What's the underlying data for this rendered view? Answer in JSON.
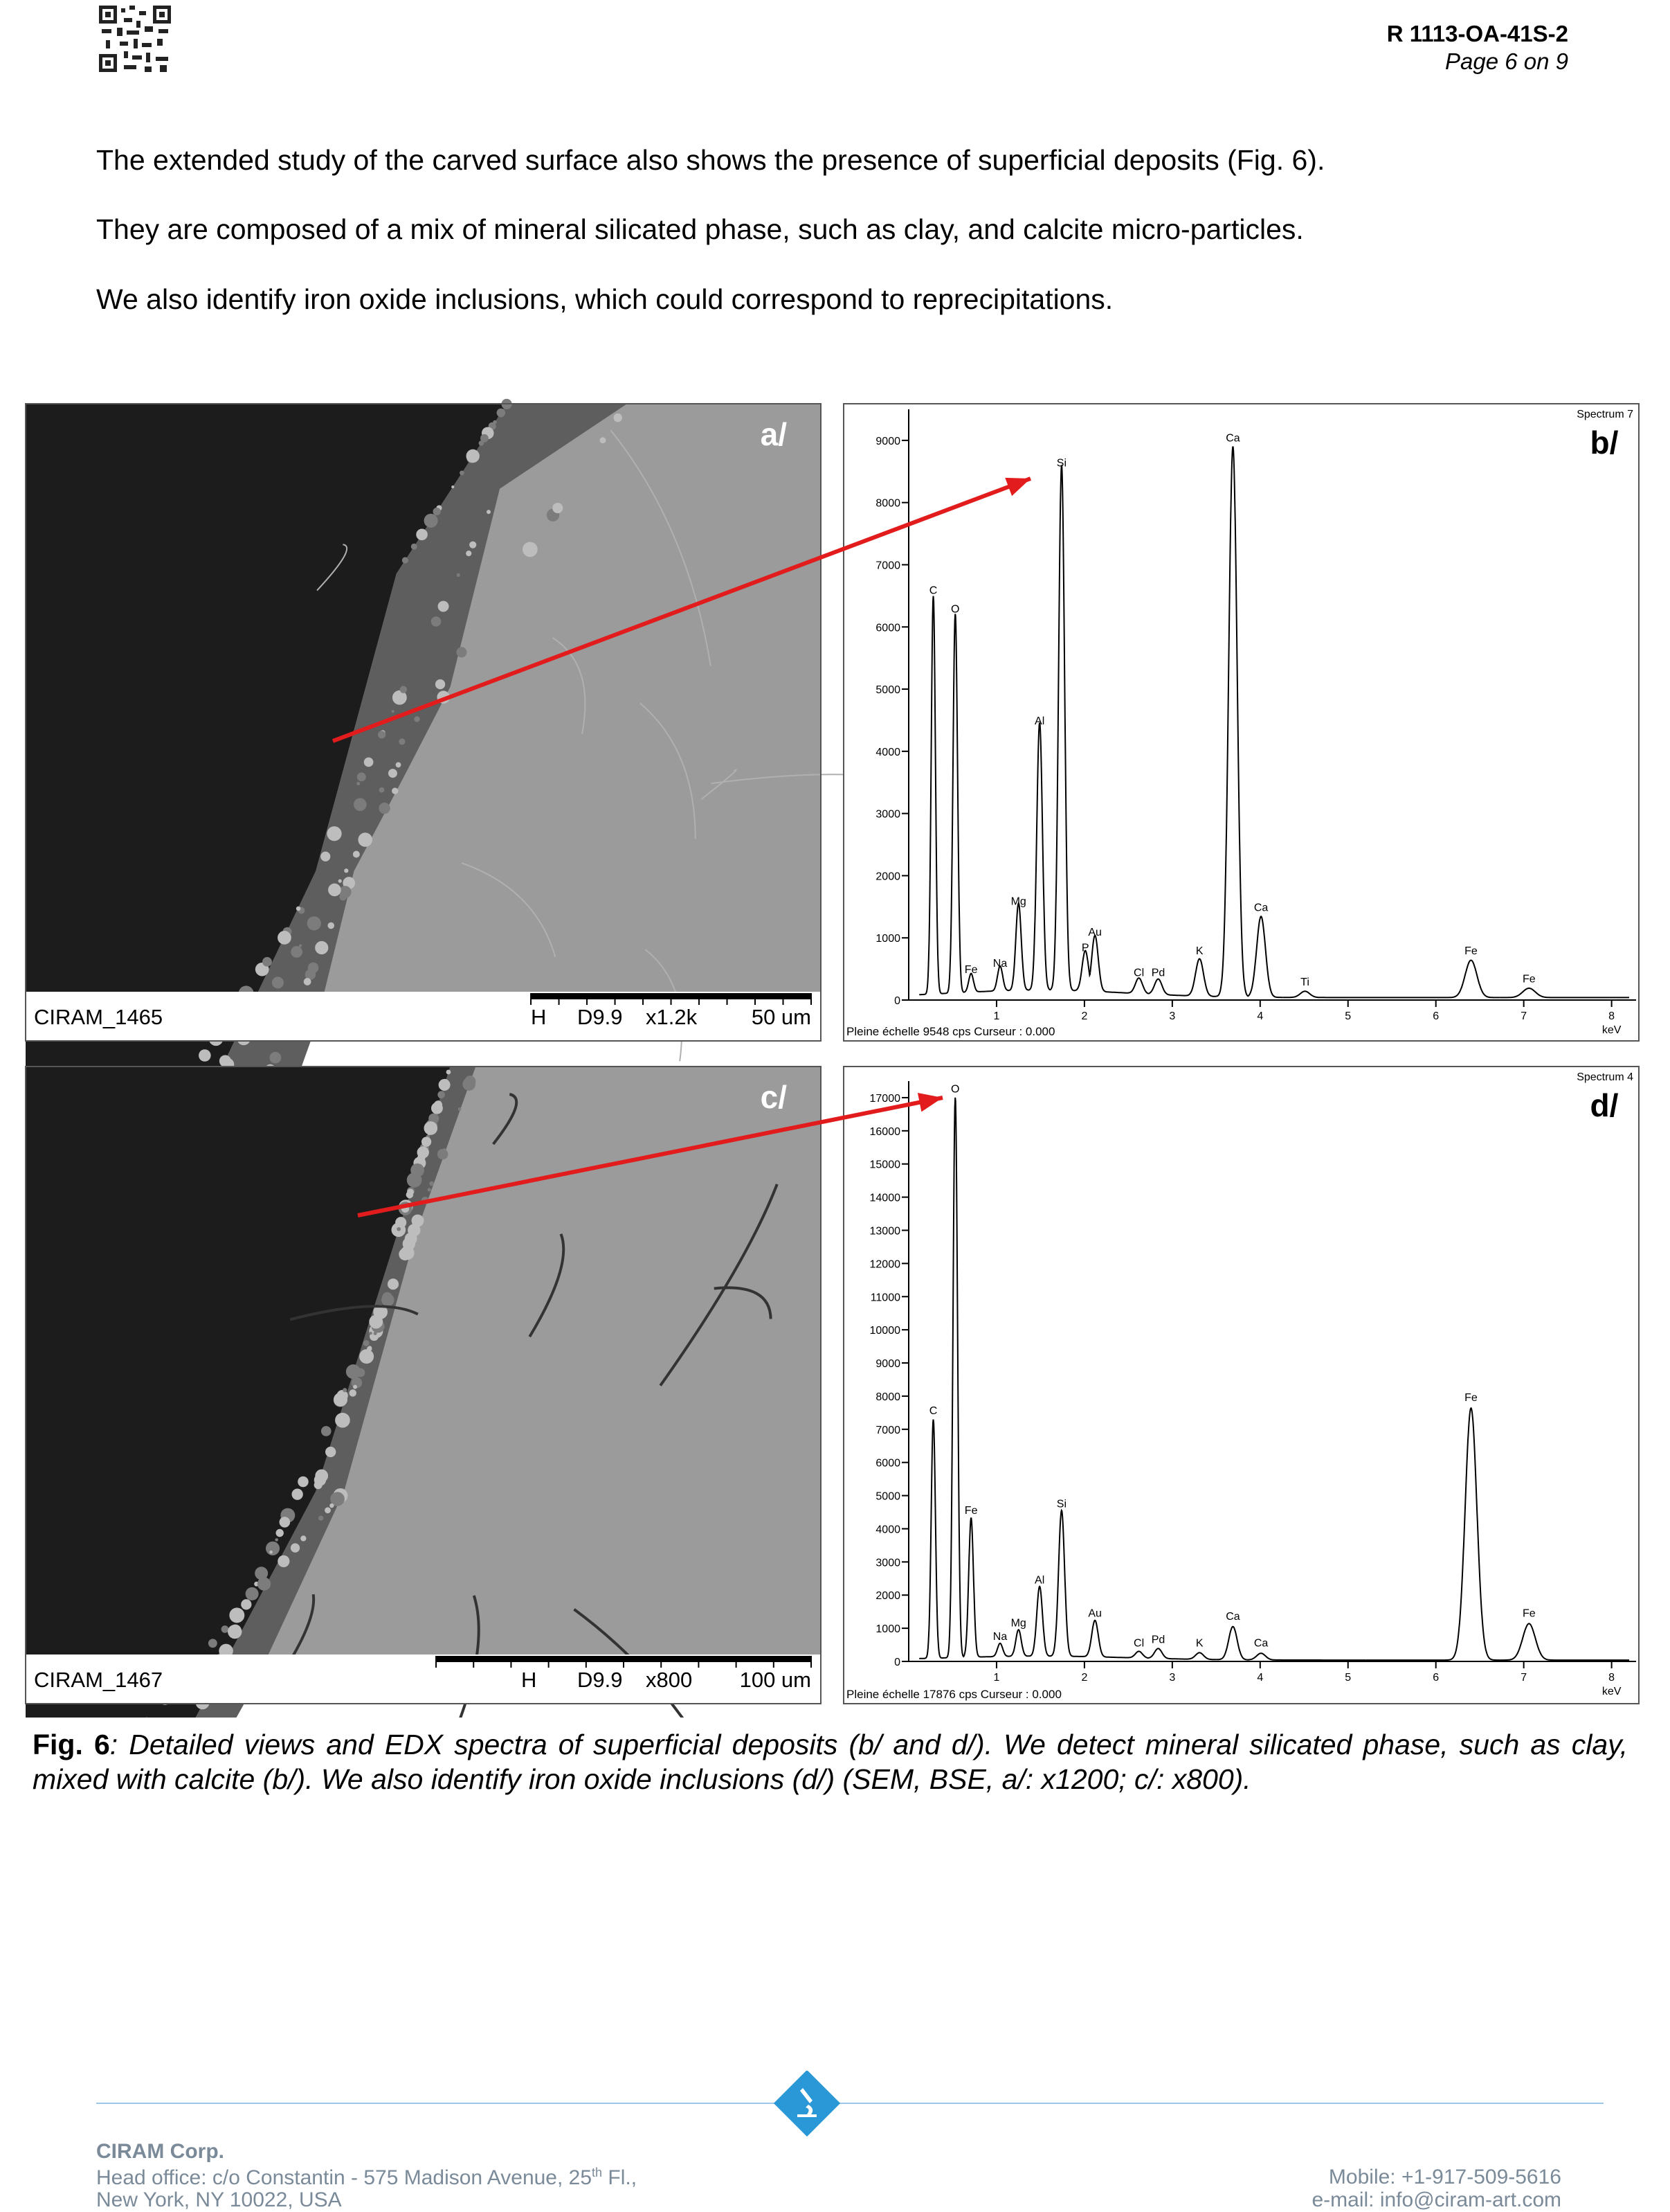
{
  "header": {
    "doc_id": "R 1113-OA-41S-2",
    "page": "Page 6 on 9"
  },
  "paragraphs": [
    "The extended study of the carved surface also shows the presence of superficial deposits (Fig. 6).",
    "They are composed of a mix of mineral silicated phase, such as clay, and calcite micro-particles.",
    "We also identify iron oxide inclusions, which could correspond to reprecipitations."
  ],
  "figures": [
    {
      "type": "sem",
      "label": "a/",
      "image_id": "CIRAM_1465",
      "detector": "H",
      "wd": "D9.9",
      "mag": "x1.2k",
      "scale": "50 um"
    },
    {
      "type": "spectrum",
      "label": "b/",
      "spectrum": "Spectrum 7",
      "footer": "Pleine échelle 9548 cps  Curseur : 0.000",
      "x_unit": "keV",
      "xlim": [
        0,
        8.2
      ],
      "ylim": [
        0,
        9500
      ],
      "xticks": [
        1,
        2,
        3,
        4,
        5,
        6,
        7,
        8
      ],
      "yticks": [
        0,
        1000,
        2000,
        3000,
        4000,
        5000,
        6000,
        7000,
        8000,
        9000
      ],
      "peaks": [
        {
          "label": "C",
          "kev": 0.28,
          "counts": 6400
        },
        {
          "label": "O",
          "kev": 0.53,
          "counts": 6100
        },
        {
          "label": "Fe",
          "kev": 0.71,
          "counts": 300
        },
        {
          "label": "Na",
          "kev": 1.04,
          "counts": 400
        },
        {
          "label": "Mg",
          "kev": 1.25,
          "counts": 1400
        },
        {
          "label": "Al",
          "kev": 1.49,
          "counts": 4300
        },
        {
          "label": "Si",
          "kev": 1.74,
          "counts": 8450
        },
        {
          "label": "P",
          "kev": 2.01,
          "counts": 650
        },
        {
          "label": "Au",
          "kev": 2.12,
          "counts": 900
        },
        {
          "label": "Cl",
          "kev": 2.62,
          "counts": 250
        },
        {
          "label": "Pd",
          "kev": 2.84,
          "counts": 250
        },
        {
          "label": "K",
          "kev": 3.31,
          "counts": 600
        },
        {
          "label": "Ca",
          "kev": 3.69,
          "counts": 8850
        },
        {
          "label": "Ca",
          "kev": 4.01,
          "counts": 1300
        },
        {
          "label": "Ti",
          "kev": 4.51,
          "counts": 100
        },
        {
          "label": "Fe",
          "kev": 6.4,
          "counts": 600
        },
        {
          "label": "Fe",
          "kev": 7.06,
          "counts": 150
        }
      ]
    },
    {
      "type": "sem",
      "label": "c/",
      "image_id": "CIRAM_1467",
      "detector": "H",
      "wd": "D9.9",
      "mag": "x800",
      "scale": "100 um"
    },
    {
      "type": "spectrum",
      "label": "d/",
      "spectrum": "Spectrum 4",
      "footer": "Pleine échelle 17876 cps  Curseur : 0.000",
      "x_unit": "keV",
      "xlim": [
        0,
        8.2
      ],
      "ylim": [
        0,
        17500
      ],
      "xticks": [
        1,
        2,
        3,
        4,
        5,
        6,
        7,
        8
      ],
      "yticks": [
        0,
        1000,
        2000,
        3000,
        4000,
        5000,
        6000,
        7000,
        8000,
        9000,
        10000,
        11000,
        12000,
        13000,
        14000,
        15000,
        16000,
        17000
      ],
      "peaks": [
        {
          "label": "C",
          "kev": 0.28,
          "counts": 7200
        },
        {
          "label": "O",
          "kev": 0.53,
          "counts": 16900
        },
        {
          "label": "Fe",
          "kev": 0.71,
          "counts": 4200
        },
        {
          "label": "Na",
          "kev": 1.04,
          "counts": 400
        },
        {
          "label": "Mg",
          "kev": 1.25,
          "counts": 800
        },
        {
          "label": "Al",
          "kev": 1.49,
          "counts": 2100
        },
        {
          "label": "Si",
          "kev": 1.74,
          "counts": 4400
        },
        {
          "label": "Au",
          "kev": 2.12,
          "counts": 1100
        },
        {
          "label": "Cl",
          "kev": 2.62,
          "counts": 200
        },
        {
          "label": "Pd",
          "kev": 2.84,
          "counts": 300
        },
        {
          "label": "K",
          "kev": 3.31,
          "counts": 200
        },
        {
          "label": "Ca",
          "kev": 3.69,
          "counts": 1000
        },
        {
          "label": "Ca",
          "kev": 4.01,
          "counts": 200
        },
        {
          "label": "Fe",
          "kev": 6.4,
          "counts": 7600
        },
        {
          "label": "Fe",
          "kev": 7.06,
          "counts": 1100
        }
      ]
    }
  ],
  "caption": {
    "label": "Fig. 6",
    "text": ": Detailed views and EDX spectra of superficial deposits (b/ and d/). We detect mineral silicated phase, such as clay, mixed with calcite (b/). We also identify iron oxide inclusions (d/) (SEM, BSE, a/: x1200; c/: x800)."
  },
  "footer": {
    "company": "CIRAM Corp.",
    "address_1": "Head office: c/o Constantin - 575 Madison Avenue, 25",
    "address_sup": "th",
    "address_2": " Fl.,",
    "address_3": "New York, NY 10022, USA",
    "mobile": "Mobile: +1-917-509-5616",
    "email": "e-mail: info@ciram-art.com"
  }
}
